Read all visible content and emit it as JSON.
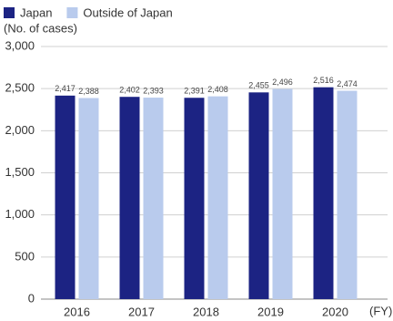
{
  "chart_data": {
    "type": "bar",
    "ylabel": "(No. of cases)",
    "xlabel": "(FY)",
    "categories": [
      "2016",
      "2017",
      "2018",
      "2019",
      "2020"
    ],
    "series": [
      {
        "name": "Japan",
        "color": "#1c2383",
        "values": [
          2417,
          2402,
          2391,
          2455,
          2516
        ],
        "value_labels": [
          "2,417",
          "2,402",
          "2,391",
          "2,455",
          "2,516"
        ]
      },
      {
        "name": "Outside of Japan",
        "color": "#b9cbed",
        "values": [
          2388,
          2393,
          2408,
          2496,
          2474
        ],
        "value_labels": [
          "2,388",
          "2,393",
          "2,408",
          "2,496",
          "2,474"
        ]
      }
    ],
    "ylim": [
      0,
      3000
    ],
    "yticks": [
      0,
      500,
      {
        "value": 1000,
        "label": "1,000"
      },
      {
        "value": 1500,
        "label": "1,500"
      },
      {
        "value": 2000,
        "label": "2,000"
      },
      {
        "value": 2500,
        "label": "2,500"
      },
      {
        "value": 3000,
        "label": "3,000"
      }
    ],
    "grid": true,
    "legend": "top-left"
  }
}
